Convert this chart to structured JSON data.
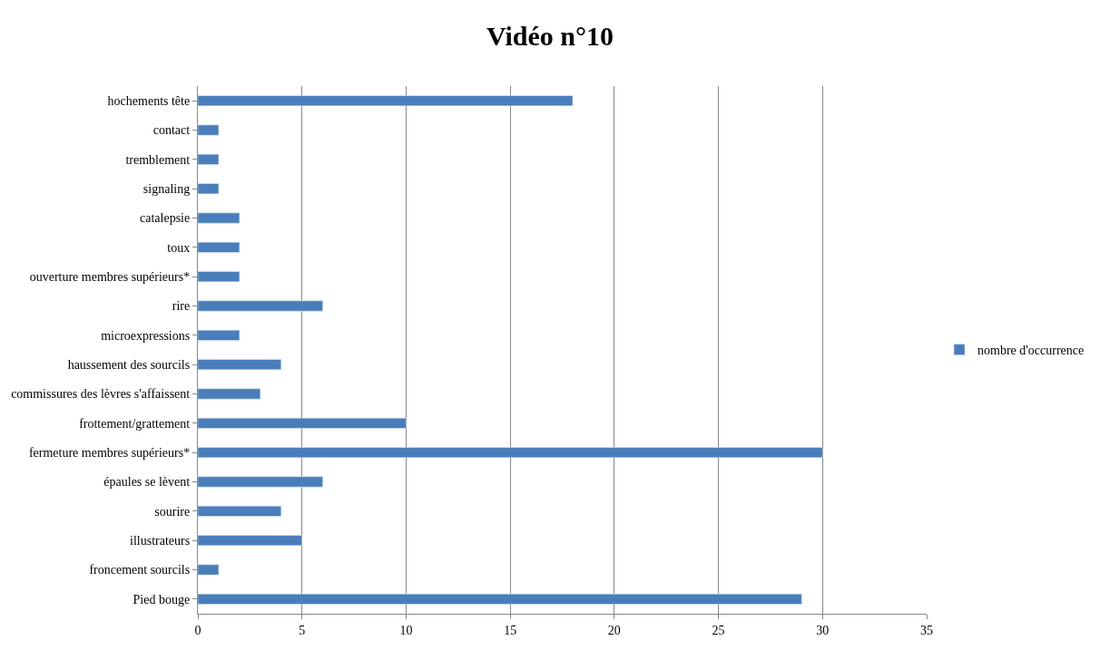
{
  "chart_data": {
    "type": "bar",
    "orientation": "horizontal",
    "title": "Vidéo n°10",
    "categories": [
      "hochements tête",
      "contact",
      "tremblement",
      "signaling",
      "catalepsie",
      "toux",
      "ouverture membres supérieurs*",
      "rire",
      "microexpressions",
      "haussement des sourcils",
      "commissures des lèvres s'affaissent",
      "frottement/grattement",
      "fermeture membres supérieurs*",
      "épaules se lèvent",
      "sourire",
      "illustrateurs",
      "froncement sourcils",
      "Pied bouge"
    ],
    "series": [
      {
        "name": "nombre d'occurrence",
        "color": "#4a7ebb",
        "values": [
          18,
          1,
          1,
          1,
          2,
          2,
          2,
          6,
          2,
          4,
          3,
          10,
          30,
          6,
          4,
          5,
          1,
          29
        ]
      }
    ],
    "xlim": [
      0,
      35
    ],
    "xticks": [
      0,
      5,
      10,
      15,
      20,
      25,
      30,
      35
    ],
    "grid": "x",
    "legend": "right"
  }
}
